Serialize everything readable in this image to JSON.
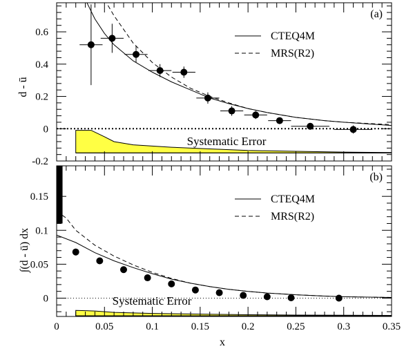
{
  "chart_data": [
    {
      "panel_label": "(a)",
      "type": "scatter",
      "ylabel": "d - ū",
      "xlim": [
        0,
        0.35
      ],
      "ylim": [
        -0.2,
        0.78
      ],
      "yticks": [
        {
          "value": -0.2,
          "label": "-0.2"
        },
        {
          "value": 0,
          "label": "0"
        },
        {
          "value": 0.2,
          "label": "0.2"
        },
        {
          "value": 0.4,
          "label": "0.4"
        },
        {
          "value": 0.6,
          "label": "0.6"
        }
      ],
      "series": [
        {
          "kind": "data",
          "points": [
            {
              "x": 0.036,
              "y": 0.52,
              "xerr": 0.012,
              "yerr": 0.25
            },
            {
              "x": 0.058,
              "y": 0.56,
              "xerr": 0.012,
              "yerr": 0.09
            },
            {
              "x": 0.083,
              "y": 0.46,
              "xerr": 0.012,
              "yerr": 0.05
            },
            {
              "x": 0.108,
              "y": 0.36,
              "xerr": 0.012,
              "yerr": 0.04
            },
            {
              "x": 0.133,
              "y": 0.35,
              "xerr": 0.012,
              "yerr": 0.035
            },
            {
              "x": 0.158,
              "y": 0.19,
              "xerr": 0.012,
              "yerr": 0.035
            },
            {
              "x": 0.183,
              "y": 0.11,
              "xerr": 0.012,
              "yerr": 0.03
            },
            {
              "x": 0.208,
              "y": 0.085,
              "xerr": 0.012,
              "yerr": 0.025
            },
            {
              "x": 0.233,
              "y": 0.05,
              "xerr": 0.012,
              "yerr": 0.02
            },
            {
              "x": 0.265,
              "y": 0.015,
              "xerr": 0.02,
              "yerr": 0.02
            },
            {
              "x": 0.31,
              "y": -0.005,
              "xerr": 0.02,
              "yerr": 0.025
            }
          ]
        },
        {
          "name": "CTEQ4M",
          "kind": "curve",
          "style": "solid",
          "points": [
            [
              0.03,
              0.8
            ],
            [
              0.04,
              0.68
            ],
            [
              0.05,
              0.59
            ],
            [
              0.06,
              0.52
            ],
            [
              0.08,
              0.42
            ],
            [
              0.1,
              0.35
            ],
            [
              0.12,
              0.29
            ],
            [
              0.14,
              0.24
            ],
            [
              0.16,
              0.19
            ],
            [
              0.18,
              0.155
            ],
            [
              0.2,
              0.125
            ],
            [
              0.22,
              0.1
            ],
            [
              0.25,
              0.07
            ],
            [
              0.28,
              0.05
            ],
            [
              0.3,
              0.04
            ],
            [
              0.35,
              0.02
            ]
          ]
        },
        {
          "name": "MRS(R2)",
          "kind": "curve",
          "style": "dashed",
          "points": [
            [
              0.05,
              0.8
            ],
            [
              0.06,
              0.7
            ],
            [
              0.08,
              0.53
            ],
            [
              0.1,
              0.41
            ],
            [
              0.12,
              0.32
            ],
            [
              0.14,
              0.25
            ],
            [
              0.16,
              0.2
            ],
            [
              0.18,
              0.16
            ],
            [
              0.2,
              0.125
            ],
            [
              0.22,
              0.1
            ],
            [
              0.25,
              0.07
            ],
            [
              0.28,
              0.05
            ],
            [
              0.3,
              0.04
            ],
            [
              0.35,
              0.025
            ]
          ]
        }
      ],
      "zero_line": "dotted",
      "systematic_error": {
        "label": "Systematic Error",
        "band": [
          [
            0.02,
            -0.01
          ],
          [
            0.036,
            -0.01
          ],
          [
            0.05,
            -0.05
          ],
          [
            0.06,
            -0.08
          ],
          [
            0.08,
            -0.1
          ],
          [
            0.12,
            -0.115
          ],
          [
            0.16,
            -0.125
          ],
          [
            0.2,
            -0.135
          ],
          [
            0.25,
            -0.14
          ],
          [
            0.3,
            -0.145
          ],
          [
            0.35,
            -0.148
          ]
        ],
        "baseline": -0.15,
        "color": "#ffff44"
      }
    },
    {
      "panel_label": "(b)",
      "type": "scatter",
      "ylabel": "∫(d - ū) dx",
      "xlabel": "x",
      "xlim": [
        0,
        0.35
      ],
      "ylim": [
        -0.027,
        0.195
      ],
      "yticks": [
        {
          "value": 0,
          "label": "0"
        },
        {
          "value": 0.05,
          "label": "0.05"
        },
        {
          "value": 0.1,
          "label": "0.1"
        },
        {
          "value": 0.15,
          "label": "0.15"
        }
      ],
      "xticks": [
        {
          "value": 0,
          "label": "0"
        },
        {
          "value": 0.05,
          "label": "0.05"
        },
        {
          "value": 0.1,
          "label": "0.1"
        },
        {
          "value": 0.15,
          "label": "0.15"
        },
        {
          "value": 0.2,
          "label": "0.2"
        },
        {
          "value": 0.25,
          "label": "0.25"
        },
        {
          "value": 0.3,
          "label": "0.3"
        },
        {
          "value": 0.35,
          "label": "0.35"
        }
      ],
      "series": [
        {
          "kind": "data",
          "points": [
            {
              "x": 0.02,
              "y": 0.068,
              "yerr": 0.005
            },
            {
              "x": 0.045,
              "y": 0.055,
              "yerr": 0.003
            },
            {
              "x": 0.07,
              "y": 0.042,
              "yerr": 0.002
            },
            {
              "x": 0.095,
              "y": 0.03,
              "yerr": 0.002
            },
            {
              "x": 0.12,
              "y": 0.021,
              "yerr": 0.002
            },
            {
              "x": 0.145,
              "y": 0.012,
              "yerr": 0.001
            },
            {
              "x": 0.17,
              "y": 0.008,
              "yerr": 0.001
            },
            {
              "x": 0.195,
              "y": 0.004,
              "yerr": 0.001
            },
            {
              "x": 0.22,
              "y": 0.002,
              "yerr": 0.001
            },
            {
              "x": 0.245,
              "y": 0.0005,
              "yerr": 0.001
            },
            {
              "x": 0.295,
              "y": 0.0,
              "yerr": 0.001
            }
          ]
        },
        {
          "name": "CTEQ4M",
          "kind": "curve",
          "style": "solid",
          "points": [
            [
              0.0,
              0.093
            ],
            [
              0.02,
              0.082
            ],
            [
              0.04,
              0.067
            ],
            [
              0.06,
              0.055
            ],
            [
              0.08,
              0.045
            ],
            [
              0.1,
              0.036
            ],
            [
              0.12,
              0.028
            ],
            [
              0.14,
              0.022
            ],
            [
              0.16,
              0.017
            ],
            [
              0.18,
              0.013
            ],
            [
              0.2,
              0.01
            ],
            [
              0.22,
              0.0075
            ],
            [
              0.25,
              0.005
            ],
            [
              0.28,
              0.003
            ],
            [
              0.3,
              0.002
            ],
            [
              0.35,
              0.001
            ]
          ]
        },
        {
          "name": "MRS(R2)",
          "kind": "curve",
          "style": "dashed",
          "points": [
            [
              0.0,
              0.128
            ],
            [
              0.01,
              0.118
            ],
            [
              0.02,
              0.1
            ],
            [
              0.04,
              0.078
            ],
            [
              0.06,
              0.062
            ],
            [
              0.08,
              0.049
            ],
            [
              0.1,
              0.038
            ],
            [
              0.12,
              0.029
            ],
            [
              0.14,
              0.022
            ],
            [
              0.16,
              0.017
            ],
            [
              0.18,
              0.013
            ],
            [
              0.2,
              0.01
            ],
            [
              0.22,
              0.0075
            ],
            [
              0.25,
              0.005
            ],
            [
              0.28,
              0.003
            ],
            [
              0.3,
              0.002
            ],
            [
              0.35,
              0.001
            ]
          ]
        }
      ],
      "zero_line": "dotted",
      "left_bar": {
        "x_range": [
          0,
          0.004
        ],
        "y_range": [
          0.11,
          0.195
        ]
      },
      "systematic_error": {
        "label": "Systematic Error",
        "band": [
          [
            0.02,
            -0.018
          ],
          [
            0.04,
            -0.019
          ],
          [
            0.06,
            -0.021
          ],
          [
            0.1,
            -0.0225
          ],
          [
            0.15,
            -0.0235
          ],
          [
            0.2,
            -0.0245
          ],
          [
            0.25,
            -0.025
          ],
          [
            0.35,
            -0.0255
          ]
        ],
        "baseline": -0.026,
        "color": "#ffff44"
      }
    }
  ],
  "legend": {
    "solid": "CTEQ4M",
    "dashed": "MRS(R2)"
  },
  "axis_text": {
    "top_ylabel": "d - ū",
    "bottom_ylabel": "∫(d - ū) dx",
    "xlabel": "x"
  }
}
